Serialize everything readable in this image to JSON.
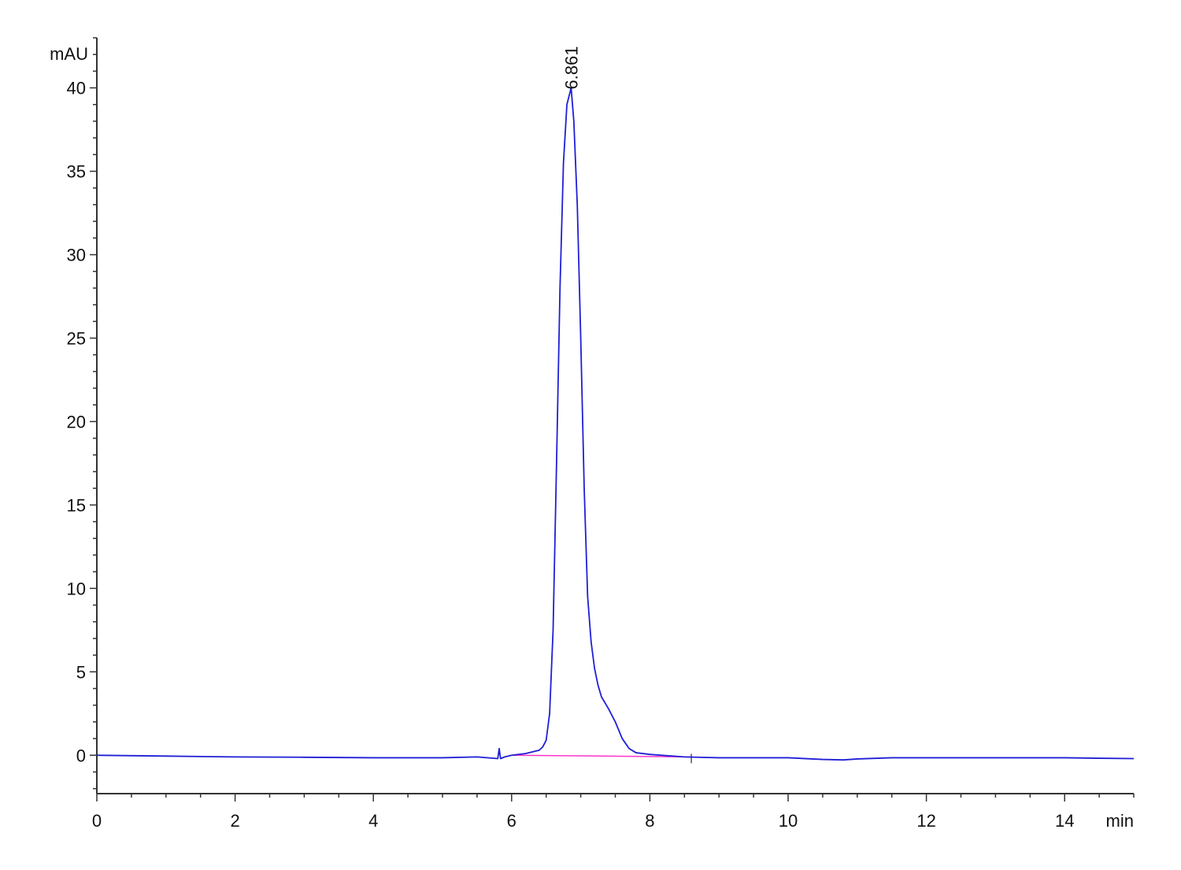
{
  "chart_data": {
    "type": "line",
    "title": "",
    "xlabel": "min",
    "ylabel": "mAU",
    "xlim": [
      0,
      15
    ],
    "ylim": [
      -2.3,
      43
    ],
    "x_ticks": [
      0,
      2,
      4,
      6,
      8,
      10,
      12,
      14
    ],
    "x_tick_labels": [
      "0",
      "2",
      "4",
      "6",
      "8",
      "10",
      "12",
      "14"
    ],
    "y_ticks": [
      0,
      5,
      10,
      15,
      20,
      25,
      30,
      35,
      40
    ],
    "y_tick_labels": [
      "0",
      "5",
      "10",
      "15",
      "20",
      "25",
      "30",
      "35",
      "40"
    ],
    "grid": false,
    "legend": "none",
    "colors": {
      "signal": "#1f1fd6",
      "baseline": "#ff33cc",
      "axis": "#333333"
    },
    "series": [
      {
        "x": [
          0,
          1,
          2,
          3,
          4,
          5,
          5.5,
          5.8,
          5.82,
          5.84,
          5.9,
          6.0,
          6.2,
          6.3,
          6.4,
          6.45,
          6.5,
          6.55,
          6.6,
          6.65,
          6.7,
          6.75,
          6.8,
          6.861,
          6.9,
          6.95,
          7.0,
          7.05,
          7.1,
          7.15,
          7.2,
          7.25,
          7.3,
          7.4,
          7.5,
          7.6,
          7.7,
          7.8,
          8.0,
          8.5,
          9.0,
          10.0,
          10.5,
          10.8,
          11.0,
          11.5,
          12.0,
          13.0,
          14.0,
          14.5,
          15.0
        ],
        "values": [
          0,
          -0.05,
          -0.1,
          -0.12,
          -0.15,
          -0.15,
          -0.1,
          -0.2,
          0.4,
          -0.2,
          -0.1,
          0.0,
          0.1,
          0.2,
          0.3,
          0.5,
          0.9,
          2.5,
          7.5,
          17.5,
          28.0,
          35.5,
          39.0,
          40.0,
          38.0,
          33.0,
          25.0,
          16.0,
          9.5,
          6.8,
          5.2,
          4.2,
          3.5,
          2.8,
          2.0,
          1.0,
          0.4,
          0.15,
          0.05,
          -0.1,
          -0.15,
          -0.15,
          -0.25,
          -0.28,
          -0.22,
          -0.15,
          -0.15,
          -0.15,
          -0.15,
          -0.18,
          -0.2
        ]
      }
    ],
    "baseline": {
      "x": [
        6.0,
        8.6
      ],
      "values": [
        0.0,
        -0.1
      ]
    },
    "peaks": [
      {
        "x": 6.861,
        "y": 40.0,
        "label": "6.861"
      }
    ]
  }
}
